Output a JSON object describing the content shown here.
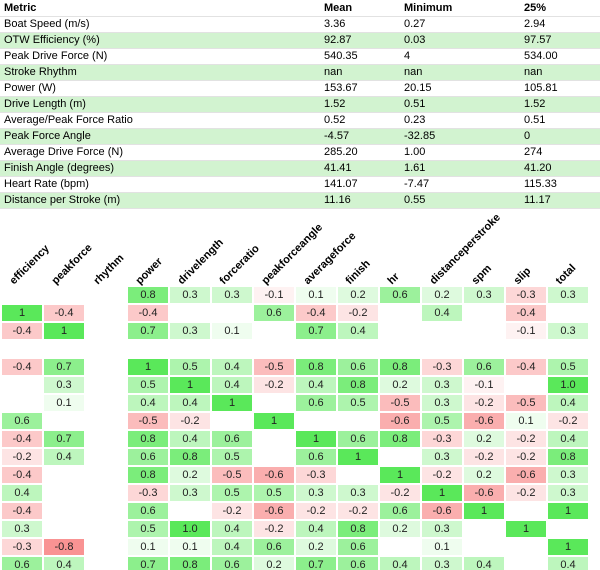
{
  "colors": {
    "table_alt_row": "#d2f3d0",
    "row_divider": "#e2e2e2",
    "heatmap_positive_strong": "#5ae85a",
    "heatmap_negative_strong": "#f79393",
    "heatmap_blank": "#ffffff"
  },
  "chart_data": [
    {
      "type": "table",
      "columns": [
        "Metric",
        "Mean",
        "Minimum",
        "25%"
      ],
      "rows": [
        [
          "Boat Speed (m/s)",
          "3.36",
          "0.27",
          "2.94"
        ],
        [
          "OTW Efficiency (%)",
          "92.87",
          "0.03",
          "97.57"
        ],
        [
          "Peak Drive Force (N)",
          "540.35",
          "4",
          "534.00"
        ],
        [
          "Stroke Rhythm",
          "nan",
          "nan",
          "nan"
        ],
        [
          "Power (W)",
          "153.67",
          "20.15",
          "105.81"
        ],
        [
          "Drive Length (m)",
          "1.52",
          "0.51",
          "1.52"
        ],
        [
          "Average/Peak Force Ratio",
          "0.52",
          "0.23",
          "0.51"
        ],
        [
          "Peak Force Angle",
          "-4.57",
          "-32.85",
          "0"
        ],
        [
          "Average Drive Force (N)",
          "285.20",
          "1.00",
          "274"
        ],
        [
          "Finish Angle (degrees)",
          "41.41",
          "1.61",
          "41.20"
        ],
        [
          "Heart Rate (bpm)",
          "141.07",
          "-7.47",
          "115.33"
        ],
        [
          "Distance per Stroke (m)",
          "11.16",
          "0.55",
          "11.17"
        ]
      ]
    },
    {
      "type": "heatmap",
      "x_labels": [
        "efficiency",
        "peakforce",
        "rhythm",
        "power",
        "drivelength",
        "forceratio",
        "peakforceangle",
        "averageforce",
        "finish",
        "hr",
        "distanceperstroke",
        "spm",
        "slip",
        "total"
      ],
      "value_range": [
        -1,
        1
      ],
      "colormap": "red-white-green",
      "grid": false,
      "legend": "none",
      "values": [
        [
          null,
          null,
          null,
          "0.8",
          "0.3",
          "0.3",
          "-0.1",
          "0.1",
          "0.2",
          "0.6",
          "0.2",
          "0.3",
          "-0.3",
          "0.3"
        ],
        [
          "1",
          "-0.4",
          null,
          "-0.4",
          null,
          null,
          "0.6",
          "-0.4",
          "-0.2",
          null,
          "0.4",
          null,
          "-0.4",
          null
        ],
        [
          "-0.4",
          "1",
          null,
          "0.7",
          "0.3",
          "0.1",
          null,
          "0.7",
          "0.4",
          null,
          null,
          null,
          "-0.1",
          "0.3"
        ],
        [
          null,
          null,
          null,
          null,
          null,
          null,
          null,
          null,
          null,
          null,
          null,
          null,
          null,
          null
        ],
        [
          "-0.4",
          "0.7",
          null,
          "1",
          "0.5",
          "0.4",
          "-0.5",
          "0.8",
          "0.6",
          "0.8",
          "-0.3",
          "0.6",
          "-0.4",
          "0.5"
        ],
        [
          null,
          "0.3",
          null,
          "0.5",
          "1",
          "0.4",
          "-0.2",
          "0.4",
          "0.8",
          "0.2",
          "0.3",
          "-0.1",
          null,
          "1.0"
        ],
        [
          null,
          "0.1",
          null,
          "0.4",
          "0.4",
          "1",
          null,
          "0.6",
          "0.5",
          "-0.5",
          "0.3",
          "-0.2",
          "-0.5",
          "0.4"
        ],
        [
          "0.6",
          null,
          null,
          "-0.5",
          "-0.2",
          null,
          "1",
          null,
          null,
          "-0.6",
          "0.5",
          "-0.6",
          "0.1",
          "-0.2"
        ],
        [
          "-0.4",
          "0.7",
          null,
          "0.8",
          "0.4",
          "0.6",
          null,
          "1",
          "0.6",
          "0.8",
          "-0.3",
          "0.2",
          "-0.2",
          "0.4"
        ],
        [
          "-0.2",
          "0.4",
          null,
          "0.6",
          "0.8",
          "0.5",
          null,
          "0.6",
          "1",
          null,
          "0.3",
          "-0.2",
          "-0.2",
          "0.8"
        ],
        [
          "-0.4",
          null,
          null,
          "0.8",
          "0.2",
          "-0.5",
          "-0.6",
          "-0.3",
          null,
          "1",
          "-0.2",
          "0.2",
          "-0.6",
          "0.3"
        ],
        [
          "0.4",
          null,
          null,
          "-0.3",
          "0.3",
          "0.5",
          "0.5",
          "0.3",
          "0.3",
          "-0.2",
          "1",
          "-0.6",
          "-0.2",
          "0.3"
        ],
        [
          "-0.4",
          null,
          null,
          "0.6",
          null,
          "-0.2",
          "-0.6",
          "-0.2",
          "-0.2",
          "0.6",
          "-0.6",
          "1",
          null,
          "1"
        ],
        [
          "0.3",
          null,
          null,
          "0.5",
          "1.0",
          "0.4",
          "-0.2",
          "0.4",
          "0.8",
          "0.2",
          "0.3",
          null,
          "1",
          null
        ],
        [
          "-0.3",
          "-0.8",
          null,
          "0.1",
          "0.1",
          "0.4",
          "0.6",
          "0.2",
          "0.6",
          null,
          "0.1",
          null,
          null,
          "1"
        ],
        [
          "0.6",
          "0.4",
          null,
          "0.7",
          "0.8",
          "0.6",
          "0.2",
          "0.7",
          "0.6",
          "0.4",
          "0.3",
          "0.4",
          null,
          "0.4"
        ]
      ]
    }
  ]
}
